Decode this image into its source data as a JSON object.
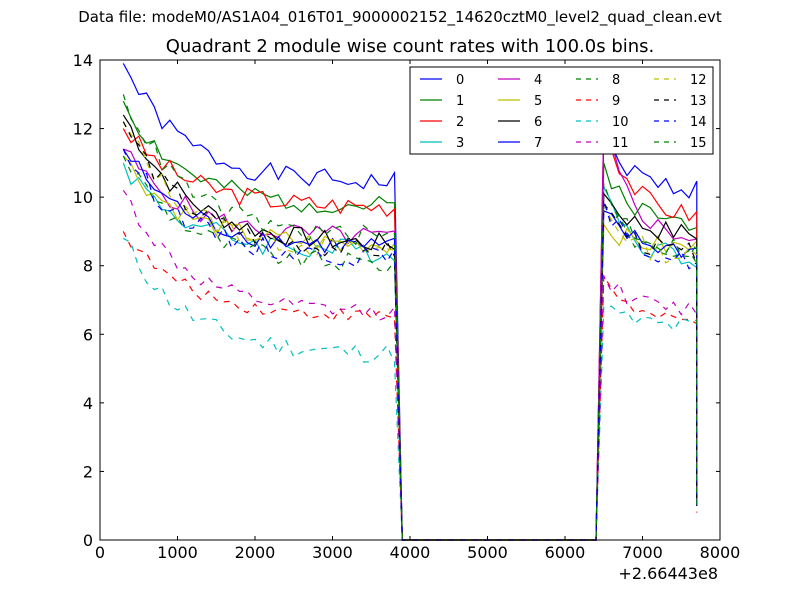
{
  "header": {
    "file_label": "Data file: modeM0/AS1A04_016T01_9000002152_14620cztM0_level2_quad_clean.evt"
  },
  "chart_data": {
    "type": "line",
    "title": "Quadrant 2 module wise count rates with 100.0s bins.",
    "xlabel": "",
    "ylabel": "",
    "x_offset_label": "+2.66443e8",
    "xlim": [
      0,
      8000
    ],
    "ylim": [
      0,
      14
    ],
    "xticks": [
      0,
      1000,
      2000,
      3000,
      4000,
      5000,
      6000,
      7000,
      8000
    ],
    "yticks": [
      0,
      2,
      4,
      6,
      8,
      10,
      12,
      14
    ],
    "grid": false,
    "legend_position": "top-right",
    "legend_columns": 4,
    "x_first_segment": [
      300,
      400,
      500,
      600,
      700,
      800,
      900,
      1000,
      1100,
      1200,
      1300,
      1400,
      1500,
      1600,
      1700,
      1800,
      1900,
      2000,
      2100,
      2200,
      2300,
      2400,
      2500,
      2600,
      2700,
      2800,
      2900,
      3000,
      3100,
      3200,
      3300,
      3400,
      3500,
      3600,
      3700,
      3800
    ],
    "x_second_segment": [
      6500,
      6600,
      6700,
      6800,
      6900,
      7000,
      7100,
      7200,
      7300,
      7400,
      7500,
      7600,
      7700
    ],
    "drop_x": [
      3900,
      6400
    ],
    "end_x": 7700,
    "series": [
      {
        "name": "0",
        "color": "#0000ff",
        "dash": "solid",
        "start": 13.9,
        "mid": 10.3,
        "end": 10.4,
        "peak": 11.8,
        "tail": 10.2,
        "last": 1.0,
        "noise": 0.3,
        "seed": 1
      },
      {
        "name": "1",
        "color": "#008000",
        "dash": "solid",
        "start": 12.8,
        "mid": 9.5,
        "end": 9.7,
        "peak": 11.0,
        "tail": 9.2,
        "last": 1.0,
        "noise": 0.3,
        "seed": 2
      },
      {
        "name": "2",
        "color": "#ff0000",
        "dash": "solid",
        "start": 12.0,
        "mid": 9.9,
        "end": 9.7,
        "peak": 12.2,
        "tail": 9.4,
        "last": 1.0,
        "noise": 0.3,
        "seed": 3
      },
      {
        "name": "3",
        "color": "#00bfbf",
        "dash": "solid",
        "start": 11.0,
        "mid": 8.4,
        "end": 8.4,
        "peak": 10.3,
        "tail": 8.2,
        "last": 1.0,
        "noise": 0.35,
        "seed": 4
      },
      {
        "name": "4",
        "color": "#bf00bf",
        "dash": "solid",
        "start": 11.4,
        "mid": 8.8,
        "end": 8.8,
        "peak": 12.2,
        "tail": 8.7,
        "last": 1.0,
        "noise": 0.3,
        "seed": 5
      },
      {
        "name": "5",
        "color": "#bfbf00",
        "dash": "solid",
        "start": 11.2,
        "mid": 8.4,
        "end": 8.6,
        "peak": 9.2,
        "tail": 8.5,
        "last": 1.0,
        "noise": 0.3,
        "seed": 6
      },
      {
        "name": "6",
        "color": "#000000",
        "dash": "solid",
        "start": 12.4,
        "mid": 9.0,
        "end": 8.6,
        "peak": 10.1,
        "tail": 8.9,
        "last": 1.0,
        "noise": 0.3,
        "seed": 7
      },
      {
        "name": "7",
        "color": "#0000ff",
        "dash": "solid",
        "start": 11.4,
        "mid": 8.8,
        "end": 8.5,
        "peak": 9.6,
        "tail": 8.4,
        "last": 1.0,
        "noise": 0.3,
        "seed": 8
      },
      {
        "name": "8",
        "color": "#008000",
        "dash": "dashed",
        "start": 11.2,
        "mid": 8.4,
        "end": 8.0,
        "peak": 9.9,
        "tail": 8.3,
        "last": 1.0,
        "noise": 0.3,
        "seed": 9
      },
      {
        "name": "9",
        "color": "#ff0000",
        "dash": "dashed",
        "start": 9.0,
        "mid": 6.6,
        "end": 6.5,
        "peak": 7.7,
        "tail": 6.3,
        "last": 0.8,
        "noise": 0.2,
        "seed": 10
      },
      {
        "name": "10",
        "color": "#00bfbf",
        "dash": "dashed",
        "start": 8.8,
        "mid": 5.6,
        "end": 5.4,
        "peak": 6.8,
        "tail": 6.2,
        "last": 1.0,
        "noise": 0.3,
        "seed": 11
      },
      {
        "name": "11",
        "color": "#bf00bf",
        "dash": "dashed",
        "start": 10.2,
        "mid": 6.6,
        "end": 6.6,
        "peak": 7.7,
        "tail": 6.7,
        "last": 1.0,
        "noise": 0.25,
        "seed": 12
      },
      {
        "name": "12",
        "color": "#bfbf00",
        "dash": "dashed",
        "start": 12.2,
        "mid": 8.6,
        "end": 8.4,
        "peak": 9.8,
        "tail": 8.2,
        "last": 1.0,
        "noise": 0.3,
        "seed": 13
      },
      {
        "name": "13",
        "color": "#000000",
        "dash": "dashed",
        "start": 12.2,
        "mid": 8.8,
        "end": 8.4,
        "peak": 9.8,
        "tail": 8.3,
        "last": 1.0,
        "noise": 0.3,
        "seed": 14
      },
      {
        "name": "14",
        "color": "#0000ff",
        "dash": "dashed",
        "start": 11.4,
        "mid": 8.4,
        "end": 8.2,
        "peak": 9.9,
        "tail": 8.1,
        "last": 1.0,
        "noise": 0.3,
        "seed": 15
      },
      {
        "name": "15",
        "color": "#008000",
        "dash": "dashed",
        "start": 13.0,
        "mid": 9.0,
        "end": 8.8,
        "peak": 10.4,
        "tail": 8.4,
        "last": 1.0,
        "noise": 0.3,
        "seed": 16
      }
    ]
  }
}
